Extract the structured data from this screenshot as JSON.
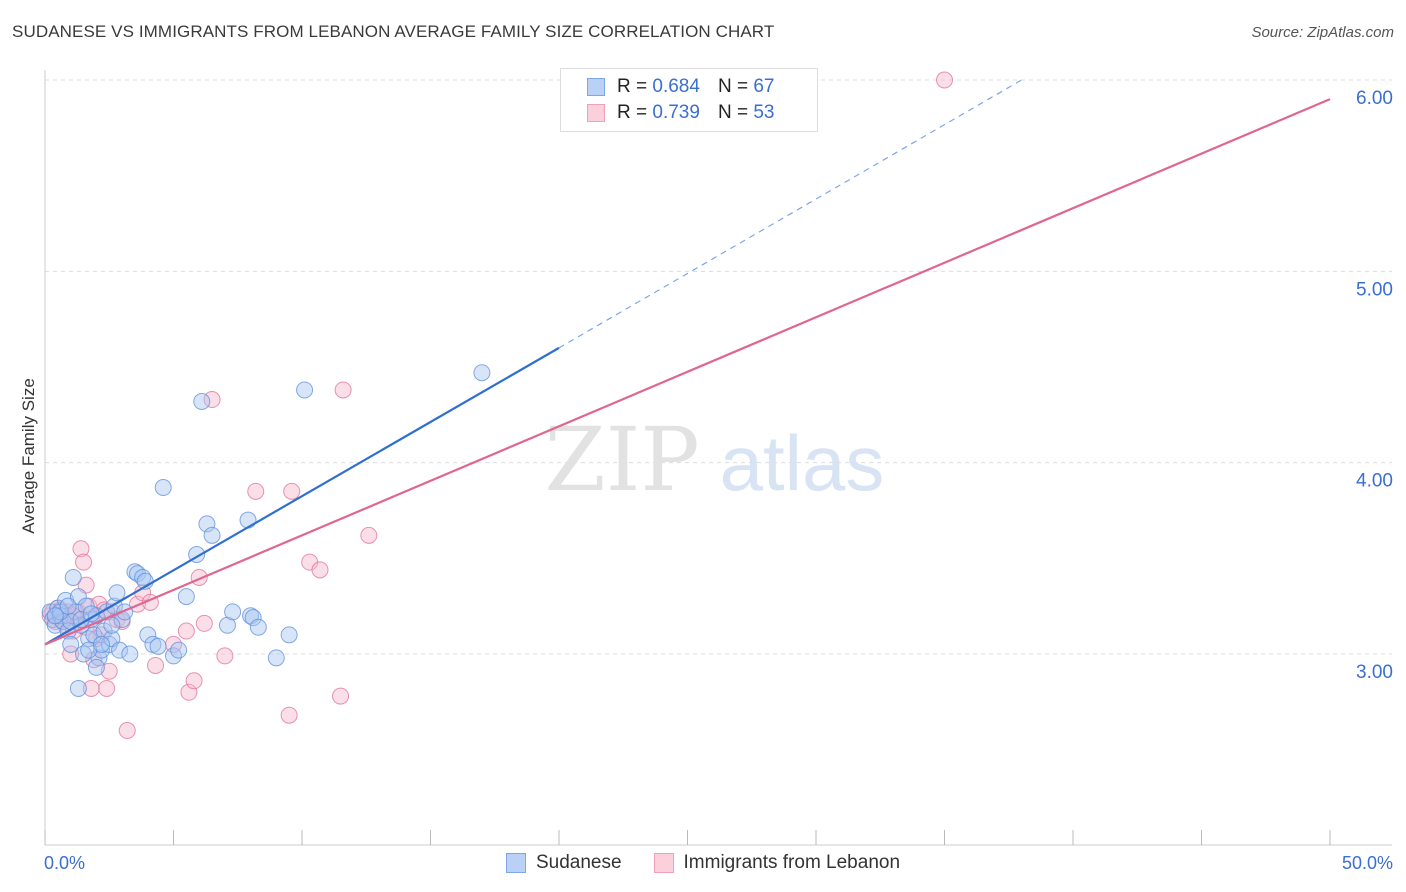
{
  "header": {
    "title": "SUDANESE VS IMMIGRANTS FROM LEBANON AVERAGE FAMILY SIZE CORRELATION CHART",
    "source": "Source: ZipAtlas.com"
  },
  "watermark": {
    "zip": "ZIP",
    "atlas": "atlas"
  },
  "legend": {
    "r_label": "R =",
    "n_label": "N =",
    "entries": [
      {
        "r": "0.684",
        "n": "67",
        "color": "#7ea6e8"
      },
      {
        "r": "0.739",
        "n": "53",
        "color": "#f0a0b8"
      }
    ]
  },
  "chart_data": {
    "type": "scatter",
    "title": "SUDANESE VS IMMIGRANTS FROM LEBANON AVERAGE FAMILY SIZE CORRELATION CHART",
    "xlabel": "",
    "ylabel": "Average Family Size",
    "xlim": [
      0,
      50
    ],
    "ylim": [
      2.0,
      6.2
    ],
    "x_tick_labels": [
      "0.0%",
      "50.0%"
    ],
    "y_ticks": [
      3.0,
      4.0,
      5.0,
      6.0
    ],
    "y_tick_labels": [
      "3.00",
      "4.00",
      "5.00",
      "6.00"
    ],
    "grid": true,
    "legend_position": "top-center",
    "series": [
      {
        "name": "Sudanese",
        "color": "#5b8fdc",
        "fill": "#a9c6f2",
        "trend": {
          "x0": 0,
          "y0": 3.05,
          "x1": 20,
          "y1": 4.6,
          "dash_to_x": 38,
          "dash_to_y": 6.0
        },
        "points": [
          [
            0.2,
            3.22
          ],
          [
            0.3,
            3.18
          ],
          [
            0.4,
            3.15
          ],
          [
            0.5,
            3.24
          ],
          [
            0.6,
            3.2
          ],
          [
            0.7,
            3.17
          ],
          [
            0.8,
            3.28
          ],
          [
            0.9,
            3.12
          ],
          [
            1.0,
            3.05
          ],
          [
            1.1,
            3.4
          ],
          [
            1.2,
            3.22
          ],
          [
            1.3,
            3.3
          ],
          [
            1.4,
            3.15
          ],
          [
            1.5,
            3.0
          ],
          [
            1.6,
            3.25
          ],
          [
            1.7,
            3.08
          ],
          [
            1.8,
            3.18
          ],
          [
            1.9,
            3.1
          ],
          [
            2.0,
            3.2
          ],
          [
            2.1,
            2.98
          ],
          [
            2.2,
            3.02
          ],
          [
            2.3,
            3.12
          ],
          [
            2.4,
            3.22
          ],
          [
            2.5,
            3.05
          ],
          [
            2.6,
            3.08
          ],
          [
            2.7,
            3.25
          ],
          [
            2.8,
            3.32
          ],
          [
            2.9,
            3.02
          ],
          [
            3.0,
            3.18
          ],
          [
            3.1,
            3.22
          ],
          [
            3.3,
            3.0
          ],
          [
            3.5,
            3.43
          ],
          [
            3.6,
            3.42
          ],
          [
            3.8,
            3.4
          ],
          [
            3.9,
            3.38
          ],
          [
            4.0,
            3.1
          ],
          [
            4.2,
            3.05
          ],
          [
            4.4,
            3.04
          ],
          [
            4.6,
            3.87
          ],
          [
            5.0,
            2.99
          ],
          [
            5.2,
            3.02
          ],
          [
            5.5,
            3.3
          ],
          [
            5.9,
            3.52
          ],
          [
            6.1,
            4.32
          ],
          [
            6.3,
            3.68
          ],
          [
            6.5,
            3.62
          ],
          [
            7.1,
            3.15
          ],
          [
            7.3,
            3.22
          ],
          [
            7.9,
            3.7
          ],
          [
            8.0,
            3.2
          ],
          [
            8.1,
            3.19
          ],
          [
            8.3,
            3.14
          ],
          [
            9.0,
            2.98
          ],
          [
            9.5,
            3.1
          ],
          [
            10.1,
            4.38
          ],
          [
            1.3,
            2.82
          ],
          [
            1.7,
            3.02
          ],
          [
            2.0,
            2.93
          ],
          [
            1.0,
            3.17
          ],
          [
            0.6,
            3.22
          ],
          [
            0.9,
            3.25
          ],
          [
            1.4,
            3.18
          ],
          [
            1.8,
            3.21
          ],
          [
            2.2,
            3.05
          ],
          [
            17.0,
            4.47
          ],
          [
            2.6,
            3.15
          ],
          [
            0.4,
            3.2
          ]
        ]
      },
      {
        "name": "Immigrants from Lebanon",
        "color": "#e27096",
        "fill": "#f6b8cb",
        "trend": {
          "x0": 0,
          "y0": 3.05,
          "x1": 50,
          "y1": 5.9
        },
        "points": [
          [
            0.2,
            3.2
          ],
          [
            0.3,
            3.22
          ],
          [
            0.4,
            3.17
          ],
          [
            0.5,
            3.24
          ],
          [
            0.6,
            3.18
          ],
          [
            0.7,
            3.2
          ],
          [
            0.8,
            3.15
          ],
          [
            0.9,
            3.22
          ],
          [
            1.0,
            3.0
          ],
          [
            1.1,
            3.12
          ],
          [
            1.2,
            3.19
          ],
          [
            1.3,
            3.22
          ],
          [
            1.4,
            3.55
          ],
          [
            1.5,
            3.48
          ],
          [
            1.6,
            3.36
          ],
          [
            1.7,
            3.25
          ],
          [
            1.8,
            2.82
          ],
          [
            1.9,
            2.97
          ],
          [
            2.0,
            3.2
          ],
          [
            2.1,
            3.26
          ],
          [
            2.2,
            3.1
          ],
          [
            2.3,
            3.23
          ],
          [
            2.4,
            2.82
          ],
          [
            2.5,
            2.91
          ],
          [
            2.6,
            3.22
          ],
          [
            2.8,
            3.18
          ],
          [
            3.0,
            3.17
          ],
          [
            3.2,
            2.6
          ],
          [
            3.6,
            3.26
          ],
          [
            3.8,
            3.32
          ],
          [
            4.1,
            3.27
          ],
          [
            4.3,
            2.94
          ],
          [
            5.0,
            3.05
          ],
          [
            5.5,
            3.12
          ],
          [
            5.6,
            2.8
          ],
          [
            5.8,
            2.86
          ],
          [
            6.0,
            3.4
          ],
          [
            6.2,
            3.16
          ],
          [
            6.5,
            4.33
          ],
          [
            7.0,
            2.99
          ],
          [
            8.2,
            3.85
          ],
          [
            9.5,
            2.68
          ],
          [
            9.6,
            3.85
          ],
          [
            10.3,
            3.48
          ],
          [
            10.7,
            3.44
          ],
          [
            11.5,
            2.78
          ],
          [
            11.6,
            4.38
          ],
          [
            12.6,
            3.62
          ],
          [
            35.0,
            6.0
          ],
          [
            1.1,
            3.2
          ],
          [
            0.6,
            3.23
          ],
          [
            1.6,
            3.14
          ],
          [
            2.0,
            3.08
          ]
        ]
      }
    ]
  },
  "bottom_legend": [
    "Sudanese",
    "Immigrants from Lebanon"
  ]
}
